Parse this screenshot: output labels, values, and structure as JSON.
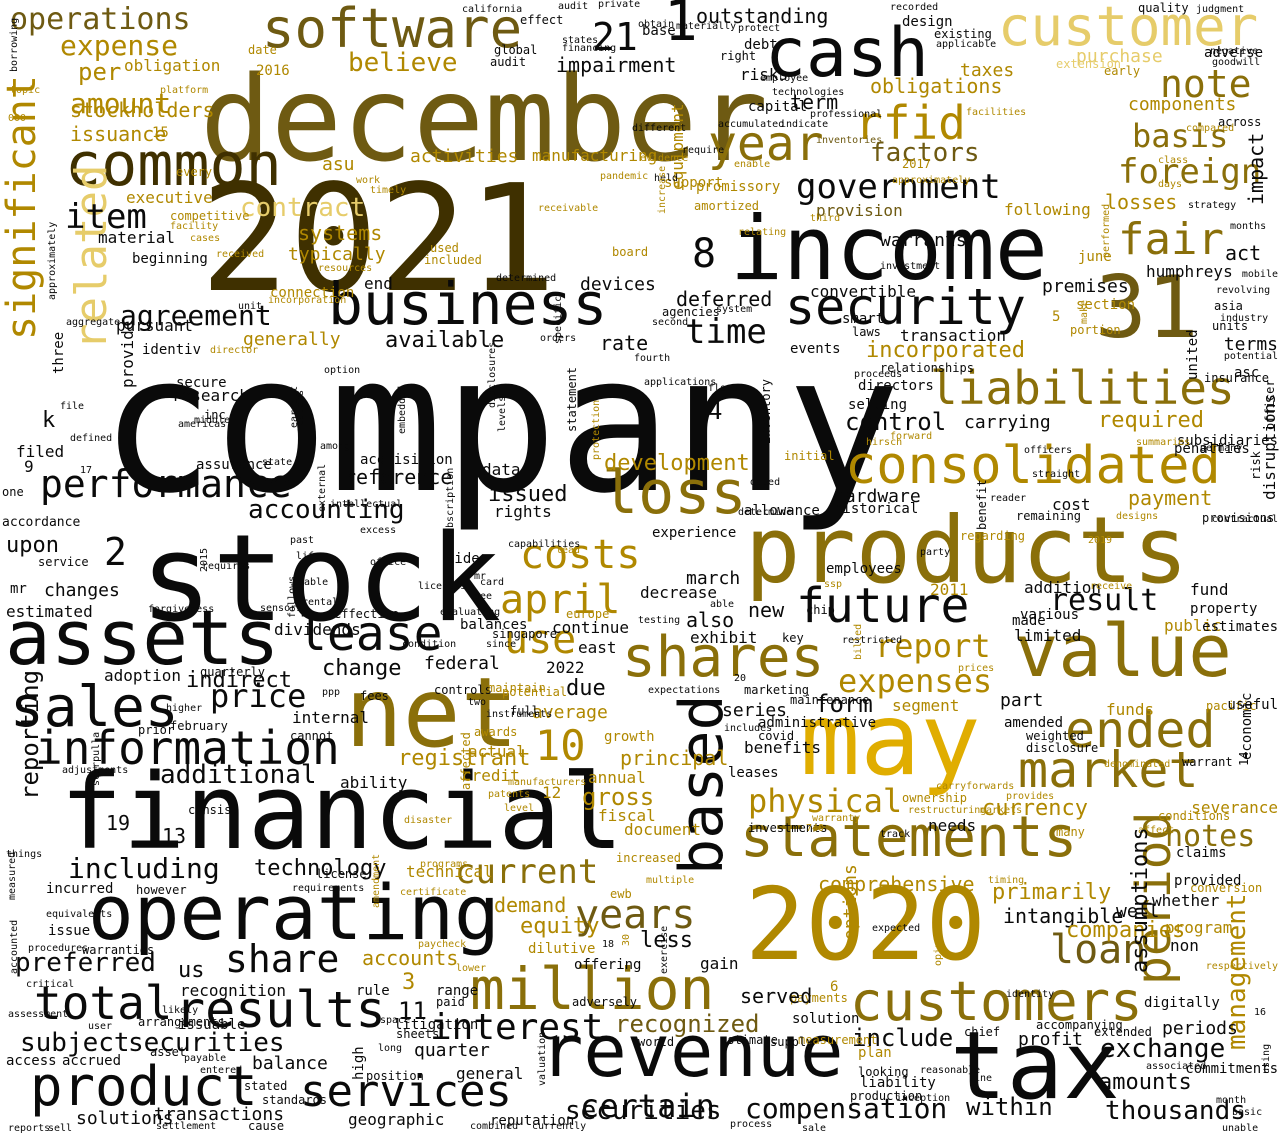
{
  "palette": {
    "black": "#0a0a0a",
    "dark_brown": "#3f3000",
    "olive": "#6e5a12",
    "dark_gold": "#8a6f0a",
    "gold": "#b08800",
    "bright_gold": "#e0ad00",
    "pale_gold": "#e6cc6a",
    "background": "#ffffff"
  },
  "words": [
    "company",
    "2021",
    "december",
    "stock",
    "financial",
    "income",
    "products",
    "net",
    "may",
    "2020",
    "tax",
    "assets",
    "operating",
    "revenue",
    "cash",
    "value",
    "31",
    "software",
    "customer",
    "common",
    "business",
    "security",
    "consolidated",
    "liabilities",
    "statements",
    "million",
    "customers",
    "loss",
    "future",
    "shares",
    "market",
    "ended",
    "based",
    "period",
    "sales",
    "information",
    "lease",
    "results",
    "total",
    "product",
    "services",
    "share",
    "fair",
    "year",
    "rfid",
    "government",
    "note",
    "basis",
    "foreign",
    "significant",
    "related",
    "performance",
    "interest",
    "current",
    "years",
    "certain",
    "compensation",
    "thousands",
    "exchange",
    "april",
    "costs",
    "expenses",
    "report",
    "physical",
    "notes",
    "loan",
    "management",
    "operations",
    "expense",
    "amount",
    "item",
    "agreement",
    "time",
    "price",
    "additional",
    "including",
    "preferred",
    "securities",
    "subject",
    "securities",
    "within",
    "recognized",
    "include",
    "development",
    "control",
    "accounting",
    "reporting",
    "believe",
    "factors",
    "incorporated",
    "required",
    "payment",
    "use",
    "form",
    "due",
    "gross",
    "currency",
    "comprehensive",
    "primarily",
    "intangible",
    "equity",
    "demand",
    "accounts",
    "amounts",
    "impact",
    "act",
    "losses",
    "result",
    "addition",
    "cost",
    "public",
    "whether",
    "program",
    "1",
    "21",
    "outstanding",
    "obligations",
    "taxes",
    "components",
    "purchase",
    "activities",
    "manufacturing",
    "term",
    "contract",
    "systems",
    "typically",
    "warrants",
    "provision",
    "following",
    "deferred",
    "rate",
    "available",
    "generally",
    "acquisition",
    "reference",
    "issued",
    "data",
    "rights",
    "experience",
    "decrease",
    "march",
    "also",
    "new",
    "exhibit",
    "continue",
    "change",
    "federal",
    "internal",
    "ability",
    "balance",
    "quarter",
    "general",
    "liability",
    "plan",
    "chief",
    "profit",
    "extended",
    "technology",
    "technical",
    "incurred",
    "us",
    "recognition",
    "10",
    "2",
    "3",
    "4",
    "8",
    "12",
    "13",
    "19",
    "11",
    "upon",
    "changes",
    "estimated",
    "filed",
    "k",
    "9",
    "one",
    "accordance",
    "service",
    "adoption",
    "quarterly",
    "february",
    "prior",
    "consist",
    "impairment",
    "capital",
    "risks",
    "debt",
    "per",
    "obligation",
    "issuance",
    "stockholders",
    "15",
    "executive",
    "material",
    "beginning",
    "pursuant",
    "identiv",
    "provide",
    "secure",
    "research",
    "inc",
    "americas",
    "assurance",
    "state",
    "statement",
    "convertible",
    "events",
    "selling",
    "directors",
    "historical",
    "hardware",
    "allowance",
    "inventory",
    "dated",
    "initial",
    "carrying",
    "various",
    "made",
    "limited",
    "estimates",
    "fund",
    "property",
    "provisions",
    "subsidiaries",
    "united",
    "terms",
    "asc",
    "insurance",
    "units",
    "asia",
    "industry",
    "revolving",
    "mobile",
    "humphreys",
    "june",
    "premises",
    "5",
    "section",
    "portion",
    "transaction",
    "relationships",
    "flows",
    "proceeds",
    "unit",
    "option",
    "director",
    "three",
    "every",
    "competitive",
    "facility",
    "asu",
    "platform",
    "date",
    "2016",
    "california",
    "effect",
    "audit",
    "global",
    "financing",
    "states",
    "private",
    "base",
    "materially",
    "right",
    "protect",
    "employee",
    "technologies",
    "accumulated",
    "indicate",
    "professional",
    "inventories",
    "2017",
    "approximately",
    "promissory",
    "amortized",
    "support",
    "equipment",
    "end",
    "devices",
    "connection",
    "recorded",
    "design",
    "existing",
    "applicable",
    "quality",
    "judgment",
    "adverse",
    "negative",
    "goodwill",
    "early",
    "extension",
    "across",
    "compared",
    "facilities",
    "class",
    "days",
    "months",
    "strategy",
    "disruptions",
    "penalties",
    "risk",
    "officer",
    "contractual",
    "straight",
    "remaining",
    "reader",
    "benefit",
    "regarding",
    "employees",
    "ssp",
    "2011",
    "chip",
    "restricted",
    "key",
    "prices",
    "marketing",
    "maintenance",
    "administrative",
    "covid",
    "benefits",
    "leases",
    "series",
    "segment",
    "funds",
    "amended",
    "disclosure",
    "weighted",
    "warrant",
    "pacific",
    "useful",
    "economic",
    "14",
    "provided",
    "conversion",
    "claims",
    "severance",
    "conditions",
    "affect",
    "many",
    "investments",
    "warranty",
    "ownership",
    "restructuring",
    "markets",
    "provides",
    "needs",
    "companies",
    "assumptions",
    "well",
    "non",
    "respectively",
    "periods",
    "16",
    "using",
    "month",
    "unable",
    "commitments",
    "associated",
    "line",
    "accompanying",
    "digitally",
    "identity",
    "payments",
    "solution",
    "served",
    "gain",
    "less",
    "options",
    "expected",
    "6",
    "looking",
    "reasonable",
    "production",
    "inception",
    "opinion",
    "measurement",
    "estimate",
    "supply",
    "process",
    "sale",
    "currently",
    "reputation",
    "geographic",
    "valuation",
    "adversely",
    "paycheck",
    "lower",
    "dilutive",
    "offering",
    "exercise",
    "18",
    "30",
    "ewb",
    "multiple",
    "certificate",
    "programs",
    "increased",
    "document",
    "fiscal",
    "annual",
    "credit",
    "affected",
    "actual",
    "growth",
    "average",
    "principal",
    "registrant",
    "part",
    "used",
    "included",
    "laws",
    "smart",
    "card",
    "mr",
    "video",
    "see",
    "table",
    "rental",
    "life",
    "past",
    "excess",
    "office",
    "intellectual",
    "external",
    "among",
    "readers",
    "earnout",
    "middle",
    "scarpulla",
    "adjustments",
    "higher",
    "ppp",
    "fees",
    "cannot",
    "awards",
    "singapore",
    "since",
    "east",
    "europe",
    "2022",
    "controls",
    "maintain",
    "two",
    "full",
    "instruments",
    "world",
    "litigation",
    "sheets",
    "paid",
    "range",
    "rule",
    "space",
    "long",
    "high",
    "position",
    "standards",
    "stated",
    "entered",
    "payable",
    "asset",
    "arrangements",
    "issuable",
    "warranties",
    "procedures",
    "issue",
    "equivalents",
    "accrued",
    "access",
    "solutions",
    "transactions",
    "settlement",
    "cause",
    "sell",
    "reports",
    "assessment",
    "critical",
    "user",
    "likely",
    "license",
    "requirements",
    "however",
    "amendment",
    "accounted",
    "measured",
    "things",
    "file",
    "defined",
    "17",
    "mr",
    "forgiveness",
    "effective",
    "licenses",
    "sensors",
    "follows",
    "condition",
    "balances",
    "evaluating",
    "testing",
    "able",
    "determine",
    "2015",
    "requires",
    "7",
    "dividends",
    "borrowing",
    "topic",
    "000",
    "aggregate",
    "approximately",
    "received",
    "resources",
    "incorporation",
    "cases",
    "work",
    "timely",
    "receivable",
    "pandemic",
    "evidence",
    "enable",
    "held",
    "different",
    "require",
    "increase",
    "relating",
    "third",
    "board",
    "agencies",
    "system",
    "second",
    "specific",
    "orders",
    "fourth",
    "applications",
    "levels",
    "disclosures",
    "embedded",
    "protection",
    "lead",
    "capabilities",
    "subscription",
    "patents",
    "manufacturers",
    "level",
    "includes",
    "20",
    "expectations",
    "potential",
    "forward",
    "hirsch",
    "officers",
    "germany",
    "denominated",
    "summaries",
    "designs",
    "2019",
    "receive",
    "party",
    "billed",
    "obtain",
    "audit",
    "determined",
    "performed",
    "investment",
    "make",
    "potential",
    "740",
    "carryforwards",
    "disaster",
    "timing",
    "track",
    "combined",
    "basic",
    "indirect",
    "reflect",
    "b"
  ]
}
